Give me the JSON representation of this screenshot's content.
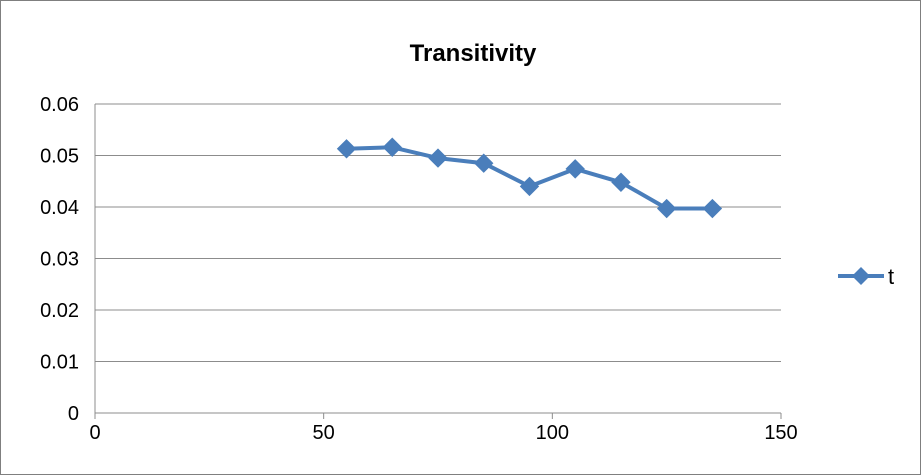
{
  "chart_data": {
    "type": "line",
    "title": "Transitivity",
    "xlabel": "",
    "ylabel": "",
    "xlim": [
      0,
      150
    ],
    "ylim": [
      0,
      0.06
    ],
    "x_ticks": [
      "0",
      "50",
      "100",
      "150"
    ],
    "y_ticks": [
      "0",
      "0.01",
      "0.02",
      "0.03",
      "0.04",
      "0.05",
      "0.06"
    ],
    "grid": "horizontal",
    "legend_position": "right",
    "series": [
      {
        "name": "t",
        "color": "#4a7ebb",
        "marker": "diamond",
        "x": [
          55,
          65,
          75,
          85,
          95,
          105,
          115,
          125,
          135
        ],
        "y": [
          0.0513,
          0.0516,
          0.0495,
          0.0485,
          0.044,
          0.0474,
          0.0448,
          0.0397,
          0.0397
        ]
      }
    ]
  }
}
